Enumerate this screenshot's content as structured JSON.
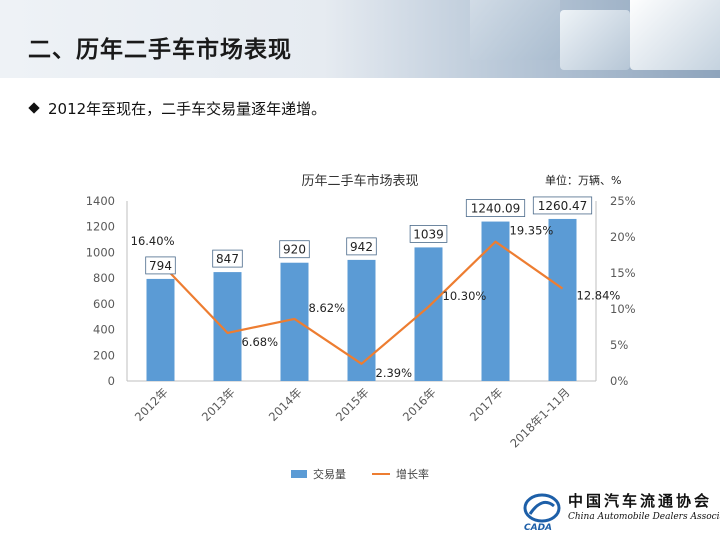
{
  "page": {
    "title": "二、历年二手车市场表现",
    "subtitle": "2012年至现在，二手车交易量逐年递增。"
  },
  "chart_data": {
    "type": "bar",
    "title": "历年二手车市场表现",
    "unit": "单位：万辆、%",
    "categories": [
      "2012年",
      "2013年",
      "2014年",
      "2015年",
      "2016年",
      "2017年",
      "2018年1-11月"
    ],
    "series": [
      {
        "name": "交易量",
        "type": "bar",
        "axis": "left",
        "color": "#5b9bd5",
        "values": [
          794,
          847,
          920,
          942,
          1039,
          1240.09,
          1260.47
        ],
        "labels": [
          "794",
          "847",
          "920",
          "942",
          "1039",
          "1240.09",
          "1260.47"
        ]
      },
      {
        "name": "增长率",
        "type": "line",
        "axis": "right",
        "color": "#ed7d31",
        "values": [
          16.4,
          6.68,
          8.62,
          2.39,
          10.3,
          19.35,
          12.84
        ],
        "labels": [
          "16.40%",
          "6.68%",
          "8.62%",
          "2.39%",
          "10.30%",
          "19.35%",
          "12.84%"
        ]
      }
    ],
    "ylim_left": [
      0,
      1400
    ],
    "yticks_left": [
      "0",
      "200",
      "400",
      "600",
      "800",
      "1000",
      "1200",
      "1400"
    ],
    "ylim_right": [
      0,
      25
    ],
    "yticks_right": [
      "0%",
      "5%",
      "10%",
      "15%",
      "20%",
      "25%"
    ],
    "grid": false,
    "legend_position": "bottom"
  },
  "logo": {
    "name_cn": "中国汽车流通协会",
    "name_en": "China Automobile Dealers Association",
    "mark_text": "CADA"
  }
}
